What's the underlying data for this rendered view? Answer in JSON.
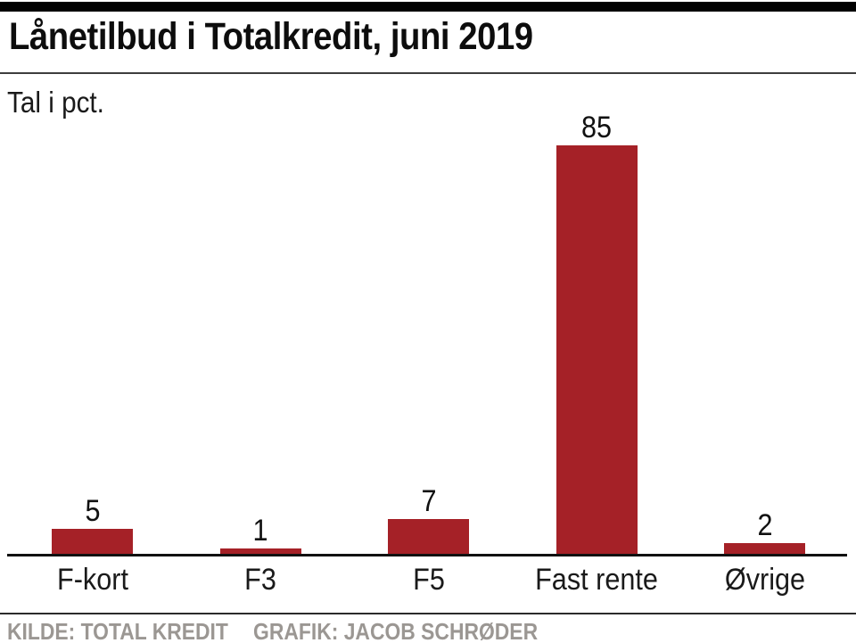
{
  "header": {
    "title": "Lånetilbud i Totalkredit, juni 2019",
    "subtitle": "Tal i pct."
  },
  "chart_data": {
    "type": "bar",
    "title": "Lånetilbud i Totalkredit, juni 2019",
    "subtitle": "Tal i pct.",
    "unit": "pct.",
    "categories": [
      "F-kort",
      "F3",
      "F5",
      "Fast rente",
      "Øvrige"
    ],
    "values": [
      5,
      1,
      7,
      85,
      2
    ],
    "ylim": [
      0,
      85
    ],
    "grid": false,
    "legend": false,
    "y_axis_shown": false,
    "value_labels_shown": true,
    "bar_color": "#a52127"
  },
  "footer": {
    "source": "KILDE: TOTAL KREDIT",
    "credit": "GRAFIK: JACOB SCHRØDER"
  },
  "colors": {
    "bar": "#a52127",
    "accent_bar": "#000000",
    "text": "#111111",
    "footer_text": "#9b9793",
    "divider": "#3d3d3d",
    "axis_line": "#111111"
  }
}
